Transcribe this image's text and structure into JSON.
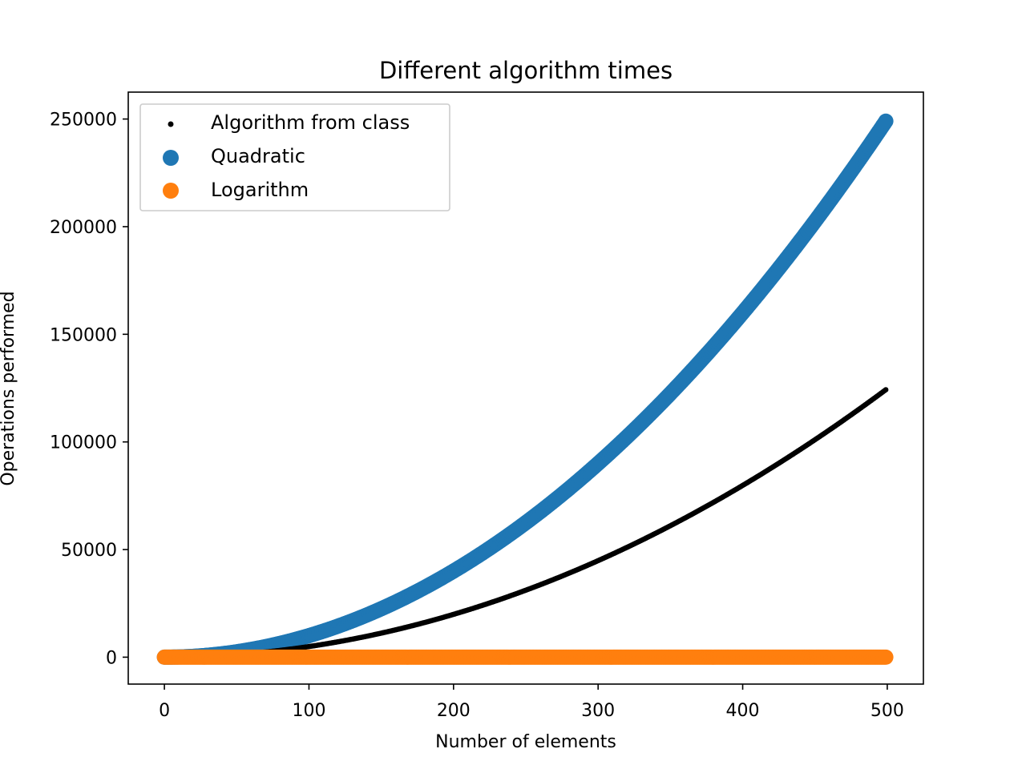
{
  "chart_data": {
    "type": "scatter",
    "title": "Different algorithm times",
    "xlabel": "Number of elements",
    "ylabel": "Operations performed",
    "xlim": [
      -25,
      525
    ],
    "ylim": [
      -12500,
      262500
    ],
    "x_ticks": [
      0,
      100,
      200,
      300,
      400,
      500
    ],
    "y_ticks": [
      0,
      50000,
      100000,
      150000,
      200000,
      250000
    ],
    "grid": false,
    "legend_position": "top-left",
    "x_range": [
      0,
      499
    ],
    "series": [
      {
        "name": "Algorithm from class",
        "color": "#000000",
        "marker": "small-dot",
        "function": "n*(n-1)/2",
        "sample_points": [
          [
            100,
            4950
          ],
          [
            200,
            19900
          ],
          [
            300,
            44850
          ],
          [
            400,
            79800
          ],
          [
            499,
            124251
          ]
        ]
      },
      {
        "name": "Quadratic",
        "color": "#1f77b4",
        "marker": "large-dot",
        "function": "n^2",
        "sample_points": [
          [
            100,
            10000
          ],
          [
            200,
            40000
          ],
          [
            300,
            90000
          ],
          [
            400,
            160000
          ],
          [
            499,
            249001
          ]
        ]
      },
      {
        "name": "Logarithm",
        "color": "#ff7f0e",
        "marker": "large-dot",
        "function": "log2(n)",
        "sample_points": [
          [
            1,
            0
          ],
          [
            100,
            6.64
          ],
          [
            499,
            8.96
          ]
        ]
      }
    ]
  }
}
